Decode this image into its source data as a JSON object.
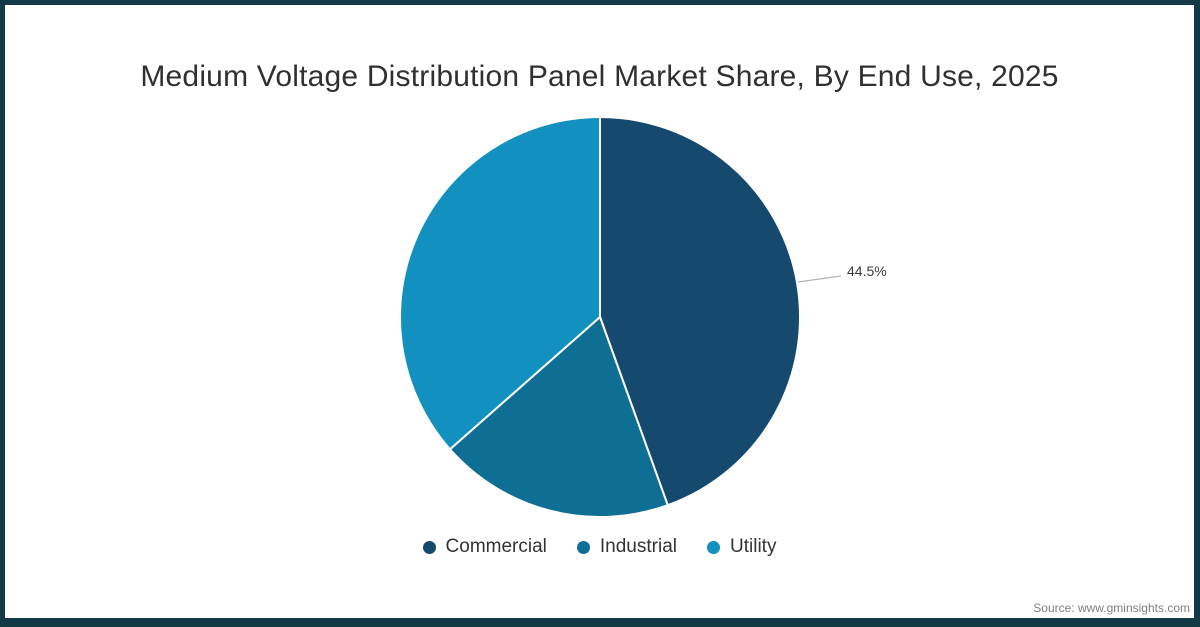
{
  "frame": {
    "border_color": "#143946",
    "background_color": "#ffffff"
  },
  "title": "Medium Voltage Distribution Panel Market Share, By End Use, 2025",
  "source": "Source: www.gminsights.com",
  "chart_data": {
    "type": "pie",
    "title": "Medium Voltage Distribution Panel Market Share, By End Use, 2025",
    "categories": [
      "Commercial",
      "Industrial",
      "Utility"
    ],
    "values": [
      44.5,
      19.0,
      36.5
    ],
    "colors": [
      "#154a6e",
      "#0e6e94",
      "#1290bf"
    ],
    "start_angle_deg": 0,
    "direction": "clockwise",
    "slice_separator_color": "#ffffff",
    "legend_position": "bottom",
    "data_label": {
      "category": "Commercial",
      "text": "44.5%"
    },
    "leader_line_color": "#b5b5b5"
  }
}
